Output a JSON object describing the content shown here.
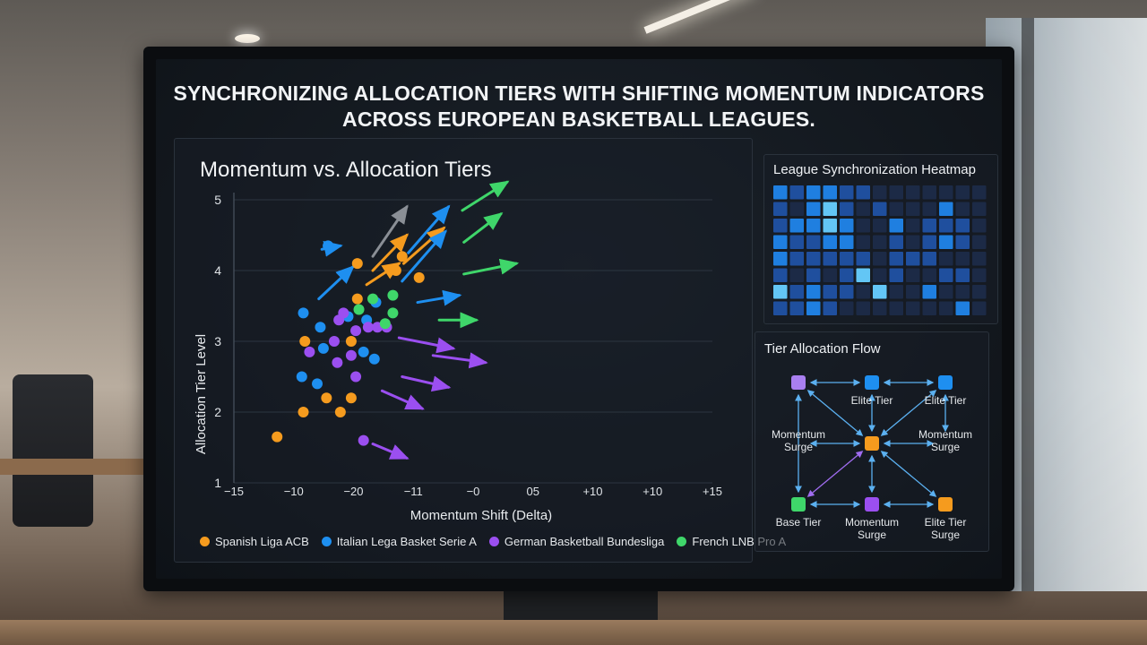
{
  "headline": {
    "line1": "SYNCHRONIZING ALLOCATION TIERS WITH SHIFTING MOMENTUM INDICATORS",
    "line2": "ACROSS EUROPEAN BASKETBALL LEAGUES."
  },
  "scatter": {
    "title": "Momentum vs. Allocation Tiers",
    "xlabel": "Momentum Shift (Delta)",
    "ylabel": "Allocation Tier Level",
    "colors": {
      "spanish": "#f59b1e",
      "italian": "#1e8ff0",
      "german": "#9b4ff0",
      "french": "#3fd66a",
      "gray": "#8a8f96"
    }
  },
  "chart_data": {
    "type": "scatter",
    "title": "Momentum vs. Allocation Tiers",
    "xlabel": "Momentum Shift (Delta)",
    "ylabel": "Allocation Tier Level",
    "x_tick_labels": [
      "−15",
      "−10",
      "−20",
      "−11",
      "−0",
      "05",
      "+10",
      "+10",
      "+15"
    ],
    "y_ticks": [
      1,
      2,
      3,
      4,
      5
    ],
    "ylim": [
      1,
      5
    ],
    "legend_position": "bottom",
    "series": [
      {
        "name": "Spanish Liga ACB",
        "color": "#f59b1e",
        "points": [
          [
            -12.7,
            1.65
          ],
          [
            -11,
            2.0
          ],
          [
            -10.9,
            3.0
          ],
          [
            -9.5,
            2.2
          ],
          [
            -8.6,
            2.0
          ],
          [
            -7.9,
            2.2
          ],
          [
            -7.9,
            3.0
          ],
          [
            -7.5,
            3.6
          ],
          [
            -7.5,
            4.1
          ],
          [
            -5,
            4.0
          ],
          [
            -4.6,
            4.2
          ],
          [
            -3.5,
            3.9
          ]
        ]
      },
      {
        "name": "Italian Lega Basket Serie A",
        "color": "#1e8ff0",
        "points": [
          [
            -11.1,
            2.5
          ],
          [
            -11,
            3.4
          ],
          [
            -10.1,
            2.4
          ],
          [
            -9.9,
            3.2
          ],
          [
            -9.7,
            2.9
          ],
          [
            -9.4,
            4.35
          ],
          [
            -8.1,
            3.35
          ],
          [
            -7.1,
            2.85
          ],
          [
            -6.9,
            3.3
          ],
          [
            -6.4,
            2.75
          ],
          [
            -6.3,
            3.55
          ]
        ]
      },
      {
        "name": "German Basketball Bundesliga",
        "color": "#9b4ff0",
        "points": [
          [
            -10.6,
            2.85
          ],
          [
            -9.0,
            3.0
          ],
          [
            -8.8,
            2.7
          ],
          [
            -8.7,
            3.3
          ],
          [
            -8.4,
            3.4
          ],
          [
            -7.9,
            2.8
          ],
          [
            -7.6,
            3.15
          ],
          [
            -7.6,
            2.5
          ],
          [
            -7.1,
            1.6
          ],
          [
            -6.8,
            3.2
          ],
          [
            -6.2,
            3.2
          ],
          [
            -5.6,
            3.2
          ]
        ]
      },
      {
        "name": "French LNB Pro A",
        "color": "#3fd66a",
        "points": [
          [
            -7.4,
            3.45
          ],
          [
            -6.5,
            3.6
          ],
          [
            -5.7,
            3.25
          ],
          [
            -5.2,
            3.65
          ],
          [
            -5.2,
            3.4
          ]
        ]
      }
    ]
  },
  "legend": {
    "items": [
      {
        "label": "Spanish Liga ACB",
        "color": "#f59b1e"
      },
      {
        "label": "Italian Lega Basket Serie A",
        "color": "#1e8ff0"
      },
      {
        "label": "German Basketball Bundesliga",
        "color": "#9b4ff0"
      },
      {
        "label": "French LNB Pro A",
        "color": "#3fd66a"
      }
    ]
  },
  "heatmap": {
    "title": "League Synchronization Heatmap",
    "rows": [
      [
        2,
        1,
        2,
        2,
        1,
        1,
        0,
        0,
        0,
        0,
        0,
        0,
        0
      ],
      [
        1,
        0,
        2,
        3,
        1,
        0,
        1,
        0,
        0,
        0,
        2,
        0,
        0
      ],
      [
        1,
        2,
        2,
        3,
        2,
        0,
        0,
        2,
        0,
        1,
        1,
        1,
        0
      ],
      [
        2,
        1,
        1,
        2,
        2,
        0,
        0,
        1,
        0,
        1,
        2,
        1,
        0
      ],
      [
        2,
        1,
        1,
        1,
        1,
        1,
        0,
        1,
        1,
        1,
        0,
        0,
        0
      ],
      [
        1,
        0,
        1,
        0,
        1,
        3,
        0,
        1,
        0,
        0,
        1,
        1,
        0
      ],
      [
        3,
        1,
        2,
        1,
        1,
        0,
        3,
        0,
        0,
        2,
        0,
        0,
        0
      ],
      [
        1,
        1,
        2,
        1,
        0,
        0,
        0,
        0,
        0,
        0,
        0,
        2,
        0
      ]
    ],
    "palette": [
      "#1c2a46",
      "#1f4f9e",
      "#1f7fe0",
      "#63c6f5"
    ]
  },
  "flow": {
    "title": "Tier Allocation Flow",
    "nodes": [
      {
        "label": "",
        "color": "#a97ff0"
      },
      {
        "label": "Elite Tier",
        "color": "#1e8ff0"
      },
      {
        "label": "Elite Tier",
        "color": "#1e8ff0"
      },
      {
        "label": "Momentum\nSurge",
        "color": ""
      },
      {
        "label": "",
        "color": "#f59b1e"
      },
      {
        "label": "Momentum\nSurge",
        "color": ""
      },
      {
        "label": "Base Tier",
        "color": "#3fd66a"
      },
      {
        "label": "Momentum\nSurge",
        "color": "#9b4ff0"
      },
      {
        "label": "Elite Tier\nSurge",
        "color": "#f59b1e"
      }
    ]
  }
}
